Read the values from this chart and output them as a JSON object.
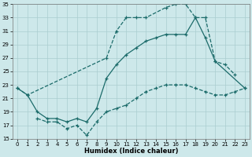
{
  "xlabel": "Humidex (Indice chaleur)",
  "bg_color": "#cde8ea",
  "grid_color": "#aacdd0",
  "line_color": "#1b6b6a",
  "ylim": [
    15,
    35
  ],
  "xlim": [
    -0.5,
    23.5
  ],
  "yticks": [
    15,
    17,
    19,
    21,
    23,
    25,
    27,
    29,
    31,
    33,
    35
  ],
  "xticks": [
    0,
    1,
    2,
    3,
    4,
    5,
    6,
    7,
    8,
    9,
    10,
    11,
    12,
    13,
    14,
    15,
    16,
    17,
    18,
    19,
    20,
    21,
    22,
    23
  ],
  "curve_A_x": [
    0,
    1,
    9,
    10,
    11,
    12,
    13,
    15,
    16,
    17,
    18,
    19,
    20,
    21,
    22
  ],
  "curve_A_y": [
    22.5,
    21.5,
    27.0,
    31.0,
    33.0,
    33.0,
    33.0,
    34.5,
    35.0,
    35.0,
    33.0,
    33.0,
    26.5,
    26.0,
    24.5
  ],
  "curve_B_x": [
    0,
    1,
    2,
    3,
    4,
    5,
    6,
    7,
    8,
    9,
    10,
    11,
    12,
    13,
    14,
    15,
    16,
    17,
    18,
    19,
    20,
    23
  ],
  "curve_B_y": [
    22.5,
    21.5,
    19.0,
    18.0,
    18.0,
    17.5,
    18.0,
    17.5,
    19.5,
    24.0,
    26.0,
    27.5,
    28.5,
    29.5,
    30.0,
    30.5,
    30.5,
    30.5,
    33.0,
    30.0,
    26.5,
    22.5
  ],
  "curve_C_x": [
    2,
    3,
    4,
    5,
    6,
    7,
    8,
    9,
    10,
    11,
    12,
    13,
    14,
    15,
    16,
    17,
    18,
    19,
    20,
    21,
    22,
    23
  ],
  "curve_C_y": [
    18.0,
    17.5,
    17.5,
    16.5,
    17.0,
    15.5,
    17.5,
    19.0,
    19.5,
    20.0,
    21.0,
    22.0,
    22.5,
    23.0,
    23.0,
    23.0,
    22.5,
    22.0,
    21.5,
    21.5,
    22.0,
    22.5
  ]
}
